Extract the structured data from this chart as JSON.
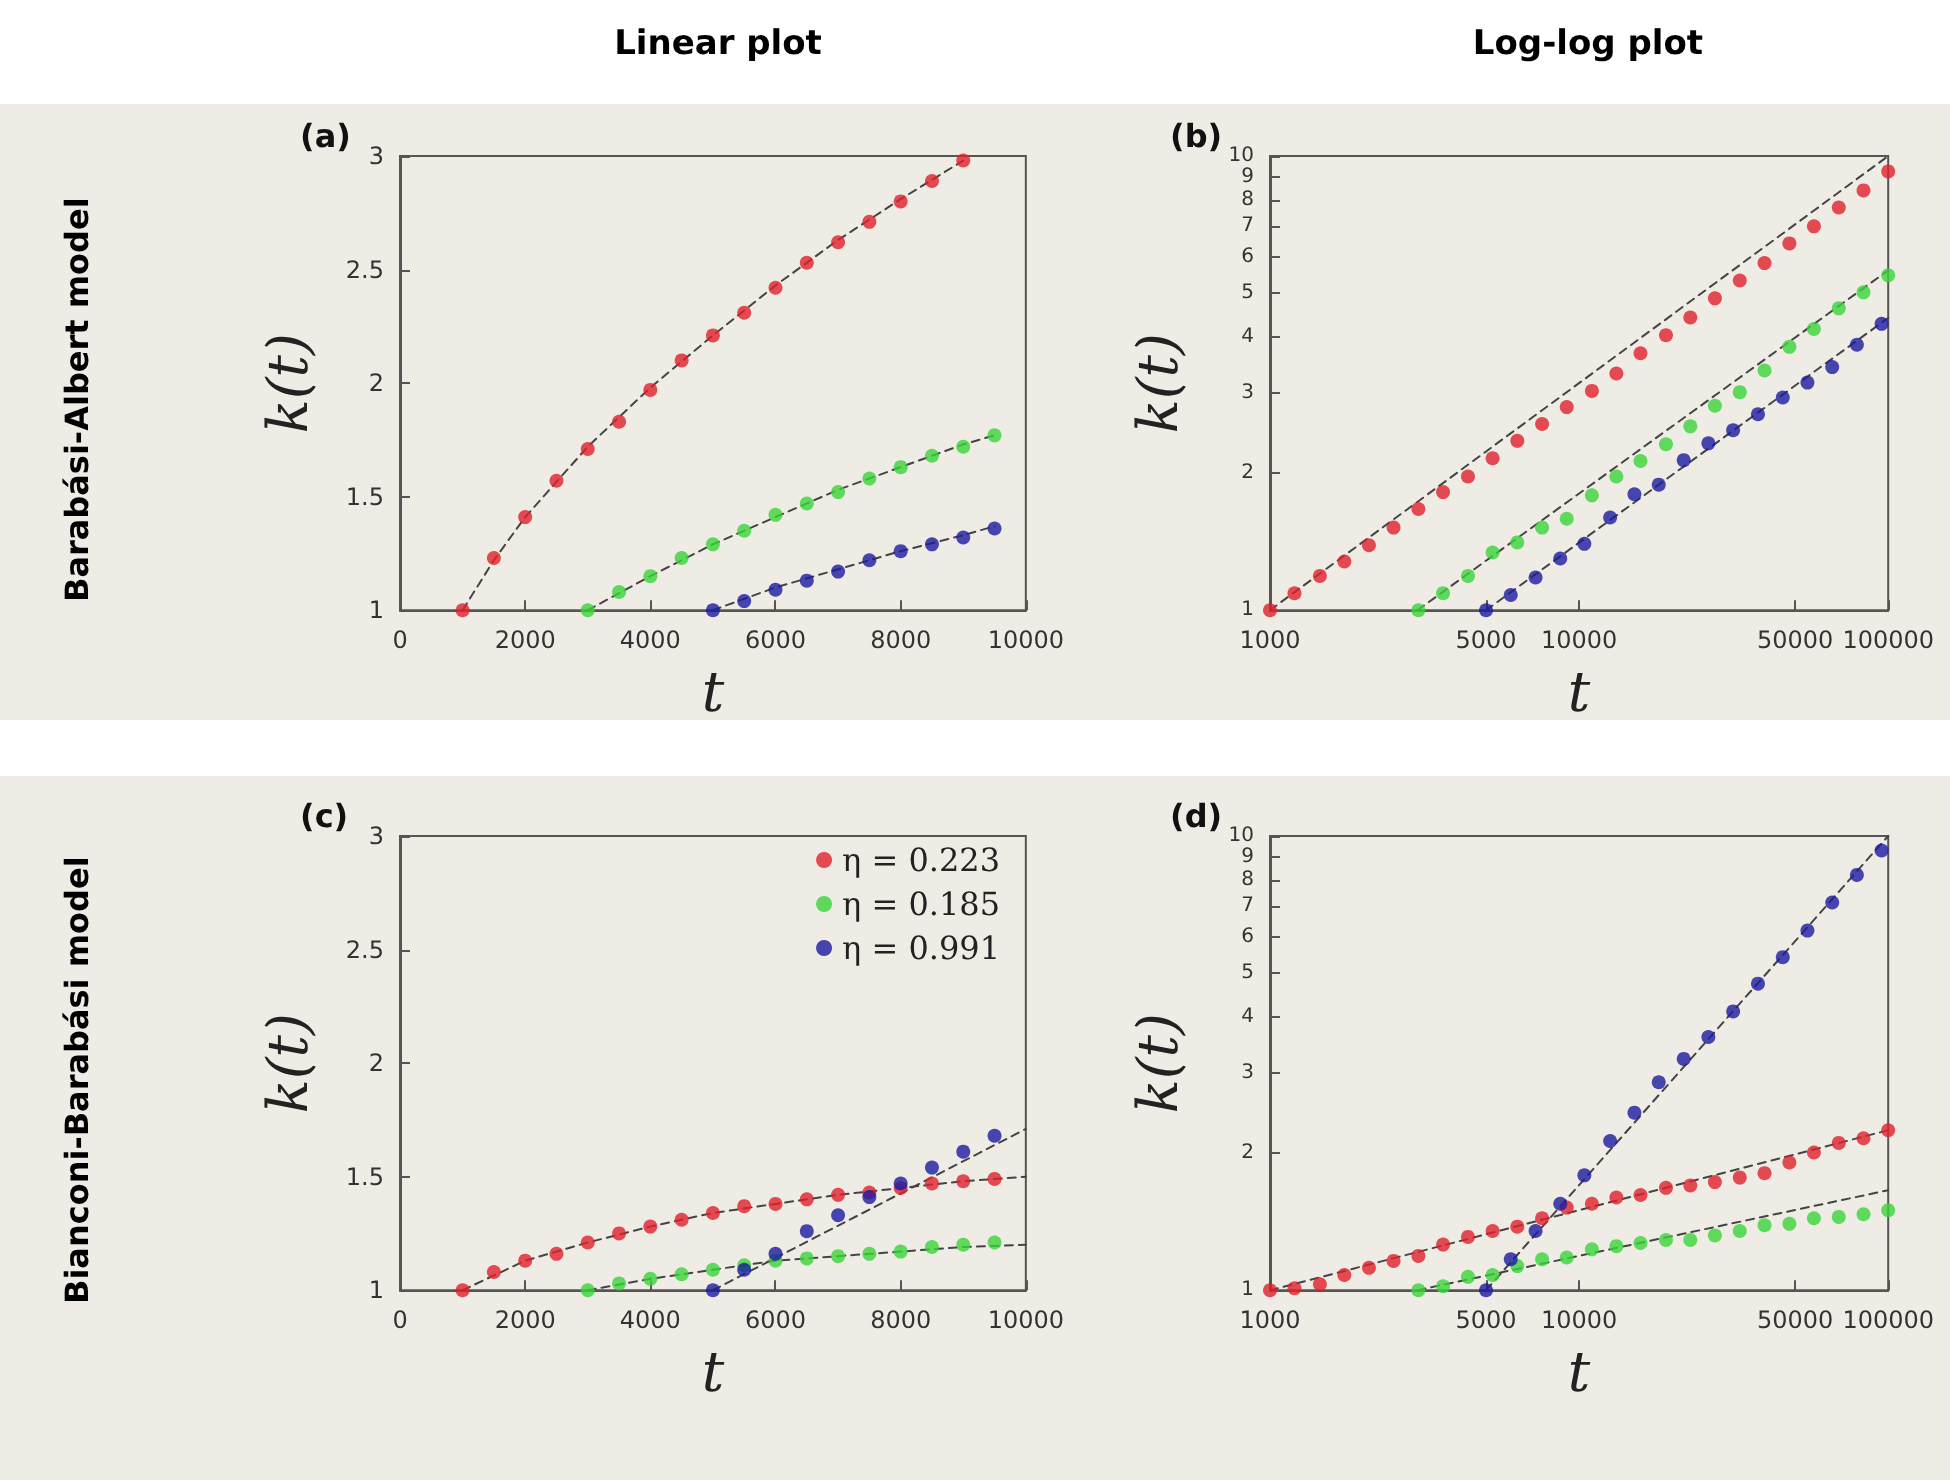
{
  "chart_data": [
    {
      "type": "scatter",
      "title": "(a)",
      "annotations": [
        "Linear plot",
        "Barabási-Albert model"
      ],
      "xlabel": "t",
      "ylabel": "k(t)",
      "xlim": [
        0,
        10000
      ],
      "xticks": [
        0,
        2000,
        4000,
        6000,
        8000,
        10000
      ],
      "ylim": [
        1,
        3
      ],
      "yticks": [
        1,
        1.5,
        2,
        2.5,
        3
      ],
      "marker": "circle",
      "line_style": "dashed",
      "legend": false,
      "series": [
        {
          "type": "line",
          "marker": "none",
          "color": "#444444",
          "x": [
            1000,
            1500,
            2000,
            3000,
            4000,
            5000,
            6000,
            7000,
            8000,
            9000
          ],
          "values": [
            1,
            1.22,
            1.41,
            1.72,
            1.98,
            2.21,
            2.43,
            2.63,
            2.81,
            2.98
          ]
        },
        {
          "type": "line",
          "marker": "none",
          "color": "#444444",
          "x": [
            3000,
            4000,
            5000,
            6000,
            7000,
            8000,
            9000,
            9500
          ],
          "values": [
            1,
            1.15,
            1.29,
            1.41,
            1.53,
            1.63,
            1.73,
            1.77
          ]
        },
        {
          "type": "line",
          "marker": "none",
          "color": "#444444",
          "x": [
            5000,
            6000,
            7000,
            8000,
            9000,
            9500
          ],
          "values": [
            1,
            1.1,
            1.18,
            1.26,
            1.33,
            1.37
          ]
        },
        {
          "color": "#e0202a",
          "x": [
            1000,
            1500,
            2000,
            2500,
            3000,
            3500,
            4000,
            4500,
            5000,
            5500,
            6000,
            6500,
            7000,
            7500,
            8000,
            8500,
            9000
          ],
          "values": [
            1,
            1.23,
            1.41,
            1.57,
            1.71,
            1.83,
            1.97,
            2.1,
            2.21,
            2.31,
            2.42,
            2.53,
            2.62,
            2.71,
            2.8,
            2.89,
            2.98
          ]
        },
        {
          "color": "#3ad43a",
          "x": [
            3000,
            3500,
            4000,
            4500,
            5000,
            5500,
            6000,
            6500,
            7000,
            7500,
            8000,
            8500,
            9000,
            9500
          ],
          "values": [
            1,
            1.08,
            1.15,
            1.23,
            1.29,
            1.35,
            1.42,
            1.47,
            1.52,
            1.58,
            1.63,
            1.68,
            1.72,
            1.77
          ]
        },
        {
          "color": "#1c1ca0",
          "x": [
            5000,
            5500,
            6000,
            6500,
            7000,
            7500,
            8000,
            8500,
            9000,
            9500
          ],
          "values": [
            1,
            1.04,
            1.09,
            1.13,
            1.17,
            1.22,
            1.26,
            1.29,
            1.32,
            1.36
          ]
        }
      ]
    },
    {
      "type": "scatter",
      "title": "(b)",
      "annotations": [
        "Log-log plot"
      ],
      "xlabel": "t",
      "ylabel": "k(t)",
      "log": "xy",
      "xlim": [
        1000,
        100000
      ],
      "xticks": [
        1000,
        5000,
        10000,
        50000,
        100000
      ],
      "ylim": [
        1,
        10
      ],
      "yticks": [
        1,
        2,
        3,
        4,
        5,
        6,
        7,
        8,
        9,
        10
      ],
      "marker": "circle",
      "line_style": "dashed",
      "legend": false,
      "series": [
        {
          "type": "line",
          "marker": "none",
          "color": "#444444",
          "x": [
            1000,
            100000
          ],
          "values": [
            1,
            10
          ]
        },
        {
          "type": "line",
          "marker": "none",
          "color": "#444444",
          "x": [
            3000,
            100000
          ],
          "values": [
            1,
            5.6
          ]
        },
        {
          "type": "line",
          "marker": "none",
          "color": "#444444",
          "x": [
            5000,
            100000
          ],
          "values": [
            1,
            4.4
          ]
        },
        {
          "color": "#e0202a",
          "x": [
            1000,
            1200,
            1450,
            1740,
            2090,
            2510,
            3020,
            3630,
            4370,
            5250,
            6310,
            7590,
            9120,
            11000,
            13200,
            15800,
            19100,
            22900,
            27500,
            33100,
            39800,
            47900,
            57500,
            69200,
            83200,
            100000
          ],
          "values": [
            1,
            1.09,
            1.19,
            1.28,
            1.39,
            1.52,
            1.67,
            1.82,
            1.97,
            2.16,
            2.36,
            2.57,
            2.8,
            3.04,
            3.32,
            3.68,
            4.03,
            4.41,
            4.86,
            5.32,
            5.81,
            6.42,
            7.0,
            7.7,
            8.4,
            9.25
          ]
        },
        {
          "color": "#3ad43a",
          "x": [
            3020,
            3630,
            4370,
            5250,
            6310,
            7590,
            9120,
            11000,
            13200,
            15800,
            19100,
            22900,
            27500,
            33100,
            39800,
            47900,
            57500,
            69200,
            83200,
            100000
          ],
          "values": [
            1,
            1.09,
            1.19,
            1.34,
            1.41,
            1.52,
            1.59,
            1.79,
            1.97,
            2.13,
            2.32,
            2.54,
            2.82,
            3.02,
            3.37,
            3.8,
            4.16,
            4.62,
            5.01,
            5.46
          ]
        },
        {
          "color": "#1c1ca0",
          "x": [
            5000,
            6010,
            7230,
            8690,
            10400,
            12600,
            15100,
            18100,
            21800,
            26200,
            31500,
            37900,
            45600,
            54800,
            65900,
            79200,
            95200
          ],
          "values": [
            1,
            1.08,
            1.18,
            1.3,
            1.4,
            1.6,
            1.8,
            1.89,
            2.14,
            2.33,
            2.49,
            2.7,
            2.94,
            3.17,
            3.43,
            3.84,
            4.27
          ]
        }
      ]
    },
    {
      "type": "scatter",
      "title": "(c)",
      "annotations": [
        "Bianconi-Barabási model"
      ],
      "xlabel": "t",
      "ylabel": "k(t)",
      "xlim": [
        0,
        10000
      ],
      "xticks": [
        0,
        2000,
        4000,
        6000,
        8000,
        10000
      ],
      "ylim": [
        1,
        3
      ],
      "yticks": [
        1,
        1.5,
        2,
        2.5,
        3
      ],
      "marker": "circle",
      "line_style": "dashed",
      "legend": "top right",
      "series": [
        {
          "type": "line",
          "marker": "none",
          "color": "#444444",
          "x": [
            1000,
            2000,
            3000,
            4000,
            5000,
            6000,
            7000,
            8000,
            9000,
            10000
          ],
          "values": [
            1,
            1.13,
            1.21,
            1.28,
            1.34,
            1.38,
            1.42,
            1.45,
            1.48,
            1.5
          ]
        },
        {
          "type": "line",
          "marker": "none",
          "color": "#444444",
          "x": [
            3000,
            4000,
            5000,
            6000,
            7000,
            8000,
            9000,
            10000
          ],
          "values": [
            1,
            1.05,
            1.09,
            1.13,
            1.15,
            1.17,
            1.19,
            1.2
          ]
        },
        {
          "type": "line",
          "marker": "none",
          "color": "#444444",
          "x": [
            5000,
            10000
          ],
          "values": [
            1,
            1.71
          ]
        },
        {
          "name": "η = 0.223",
          "color": "#e0202a",
          "x": [
            1000,
            1500,
            2000,
            2500,
            3000,
            3500,
            4000,
            4500,
            5000,
            5500,
            6000,
            6500,
            7000,
            7500,
            8000,
            8500,
            9000,
            9500
          ],
          "values": [
            1,
            1.08,
            1.13,
            1.16,
            1.21,
            1.25,
            1.28,
            1.31,
            1.34,
            1.37,
            1.38,
            1.4,
            1.42,
            1.43,
            1.45,
            1.47,
            1.48,
            1.49
          ]
        },
        {
          "name": "η = 0.185",
          "color": "#3ad43a",
          "x": [
            3000,
            3500,
            4000,
            4500,
            5000,
            5500,
            6000,
            6500,
            7000,
            7500,
            8000,
            8500,
            9000,
            9500
          ],
          "values": [
            1,
            1.03,
            1.05,
            1.07,
            1.09,
            1.11,
            1.13,
            1.14,
            1.15,
            1.16,
            1.17,
            1.19,
            1.2,
            1.21
          ]
        },
        {
          "name": "η = 0.991",
          "color": "#1c1ca0",
          "x": [
            5000,
            5500,
            6000,
            6500,
            7000,
            7500,
            8000,
            8500,
            9000,
            9500
          ],
          "values": [
            1,
            1.09,
            1.16,
            1.26,
            1.33,
            1.41,
            1.47,
            1.54,
            1.61,
            1.68
          ]
        }
      ]
    },
    {
      "type": "scatter",
      "title": "(d)",
      "xlabel": "t",
      "ylabel": "k(t)",
      "log": "xy",
      "xlim": [
        1000,
        100000
      ],
      "xticks": [
        1000,
        5000,
        10000,
        50000,
        100000
      ],
      "ylim": [
        1,
        10
      ],
      "yticks": [
        1,
        2,
        3,
        4,
        5,
        6,
        7,
        8,
        9,
        10
      ],
      "marker": "circle",
      "line_style": "dashed",
      "legend": false,
      "series": [
        {
          "type": "line",
          "marker": "none",
          "color": "#444444",
          "x": [
            1000,
            100000
          ],
          "values": [
            1,
            2.25
          ]
        },
        {
          "type": "line",
          "marker": "none",
          "color": "#444444",
          "x": [
            3000,
            100000
          ],
          "values": [
            1,
            1.66
          ]
        },
        {
          "type": "line",
          "marker": "none",
          "color": "#444444",
          "x": [
            5000,
            100000
          ],
          "values": [
            1,
            10
          ]
        },
        {
          "color": "#e0202a",
          "x": [
            1000,
            1200,
            1450,
            1740,
            2090,
            2510,
            3020,
            3630,
            4370,
            5250,
            6310,
            7590,
            9120,
            11000,
            13200,
            15800,
            19100,
            22900,
            27500,
            33100,
            39800,
            47900,
            57500,
            69200,
            83200,
            100000
          ],
          "values": [
            1,
            1.01,
            1.03,
            1.08,
            1.12,
            1.16,
            1.19,
            1.26,
            1.31,
            1.35,
            1.38,
            1.44,
            1.52,
            1.55,
            1.6,
            1.62,
            1.68,
            1.7,
            1.73,
            1.77,
            1.81,
            1.91,
            2.01,
            2.11,
            2.16,
            2.25
          ]
        },
        {
          "color": "#3ad43a",
          "x": [
            3020,
            3630,
            4370,
            5250,
            6310,
            7590,
            9120,
            11000,
            13200,
            15800,
            19100,
            22900,
            27500,
            33100,
            39800,
            47900,
            57500,
            69200,
            83200,
            100000
          ],
          "values": [
            1,
            1.02,
            1.07,
            1.08,
            1.13,
            1.17,
            1.18,
            1.23,
            1.25,
            1.27,
            1.29,
            1.29,
            1.32,
            1.35,
            1.39,
            1.4,
            1.44,
            1.45,
            1.47,
            1.5
          ]
        },
        {
          "color": "#1c1ca0",
          "x": [
            5000,
            6010,
            7230,
            8690,
            10400,
            12600,
            15100,
            18100,
            21800,
            26200,
            31500,
            37900,
            45600,
            54800,
            65900,
            79200,
            95200
          ],
          "values": [
            1,
            1.17,
            1.35,
            1.55,
            1.79,
            2.13,
            2.46,
            2.87,
            3.23,
            3.61,
            4.11,
            4.73,
            5.41,
            6.19,
            7.14,
            8.21,
            9.29
          ]
        }
      ]
    }
  ]
}
